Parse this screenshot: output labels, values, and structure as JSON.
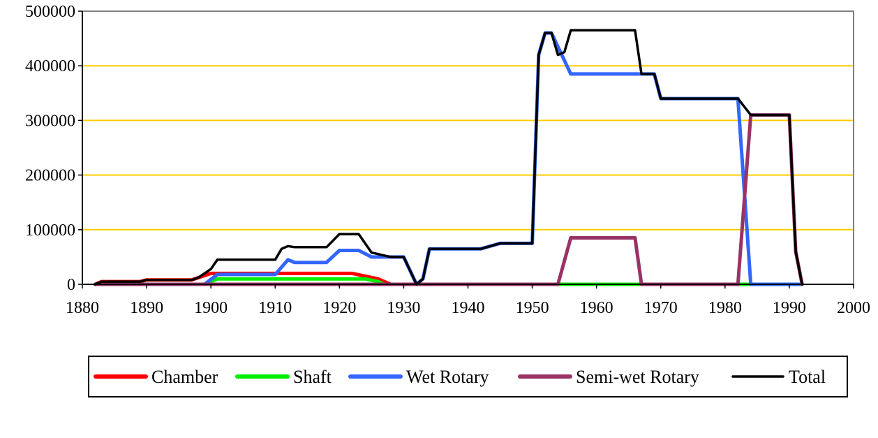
{
  "chart_data": {
    "type": "line",
    "title": "",
    "xlabel": "",
    "ylabel": "",
    "xlim": [
      1880,
      2000
    ],
    "ylim": [
      0,
      500000
    ],
    "x_ticks": [
      "1880",
      "1890",
      "1900",
      "1910",
      "1920",
      "1930",
      "1940",
      "1950",
      "1960",
      "1970",
      "1980",
      "1990",
      "2000"
    ],
    "y_ticks": [
      "0",
      "100000",
      "200000",
      "300000",
      "400000",
      "500000"
    ],
    "grid": "horizontal",
    "grid_color": "#ffcc00",
    "legend_position": "bottom",
    "series": [
      {
        "name": "Chamber",
        "color": "#ff0000",
        "points": [
          [
            1882,
            0
          ],
          [
            1883,
            5000
          ],
          [
            1889,
            5000
          ],
          [
            1890,
            8000
          ],
          [
            1897,
            8000
          ],
          [
            1898,
            12000
          ],
          [
            1900,
            20000
          ],
          [
            1922,
            20000
          ],
          [
            1924,
            15000
          ],
          [
            1926,
            10000
          ],
          [
            1928,
            0
          ],
          [
            1992,
            0
          ]
        ]
      },
      {
        "name": "Shaft",
        "color": "#00ee00",
        "points": [
          [
            1882,
            0
          ],
          [
            1899,
            0
          ],
          [
            1901,
            10000
          ],
          [
            1924,
            10000
          ],
          [
            1926,
            5000
          ],
          [
            1927,
            0
          ],
          [
            1955,
            0
          ],
          [
            1982,
            0
          ],
          [
            1983,
            0
          ],
          [
            1992,
            0
          ]
        ]
      },
      {
        "name": "Wet Rotary",
        "color": "#3366ff",
        "points": [
          [
            1882,
            0
          ],
          [
            1899,
            0
          ],
          [
            1901,
            18000
          ],
          [
            1910,
            18000
          ],
          [
            1912,
            45000
          ],
          [
            1913,
            40000
          ],
          [
            1918,
            40000
          ],
          [
            1920,
            62000
          ],
          [
            1923,
            62000
          ],
          [
            1925,
            50000
          ],
          [
            1928,
            50000
          ],
          [
            1930,
            50000
          ],
          [
            1932,
            0
          ],
          [
            1933,
            10000
          ],
          [
            1934,
            65000
          ],
          [
            1942,
            65000
          ],
          [
            1945,
            75000
          ],
          [
            1950,
            75000
          ],
          [
            1951,
            420000
          ],
          [
            1952,
            460000
          ],
          [
            1953,
            460000
          ],
          [
            1956,
            385000
          ],
          [
            1966,
            385000
          ],
          [
            1967,
            385000
          ],
          [
            1969,
            385000
          ],
          [
            1970,
            340000
          ],
          [
            1982,
            340000
          ],
          [
            1984,
            0
          ],
          [
            1990,
            0
          ],
          [
            1992,
            0
          ]
        ]
      },
      {
        "name": "Semi-wet Rotary",
        "color": "#993366",
        "points": [
          [
            1882,
            0
          ],
          [
            1954,
            0
          ],
          [
            1956,
            85000
          ],
          [
            1966,
            85000
          ],
          [
            1967,
            0
          ],
          [
            1982,
            0
          ],
          [
            1984,
            310000
          ],
          [
            1990,
            310000
          ],
          [
            1991,
            60000
          ],
          [
            1992,
            0
          ]
        ]
      },
      {
        "name": "Total",
        "color": "#000000",
        "points": [
          [
            1882,
            0
          ],
          [
            1883,
            5000
          ],
          [
            1889,
            5000
          ],
          [
            1890,
            8000
          ],
          [
            1897,
            8000
          ],
          [
            1898,
            12000
          ],
          [
            1899,
            20000
          ],
          [
            1900,
            28000
          ],
          [
            1901,
            45000
          ],
          [
            1910,
            45000
          ],
          [
            1911,
            65000
          ],
          [
            1912,
            70000
          ],
          [
            1913,
            68000
          ],
          [
            1918,
            68000
          ],
          [
            1920,
            92000
          ],
          [
            1923,
            92000
          ],
          [
            1925,
            58000
          ],
          [
            1928,
            50000
          ],
          [
            1930,
            50000
          ],
          [
            1932,
            0
          ],
          [
            1933,
            10000
          ],
          [
            1934,
            65000
          ],
          [
            1942,
            65000
          ],
          [
            1945,
            75000
          ],
          [
            1950,
            75000
          ],
          [
            1951,
            420000
          ],
          [
            1952,
            460000
          ],
          [
            1953,
            460000
          ],
          [
            1954,
            420000
          ],
          [
            1955,
            425000
          ],
          [
            1956,
            465000
          ],
          [
            1966,
            465000
          ],
          [
            1967,
            385000
          ],
          [
            1969,
            385000
          ],
          [
            1970,
            340000
          ],
          [
            1982,
            340000
          ],
          [
            1984,
            310000
          ],
          [
            1990,
            310000
          ],
          [
            1991,
            60000
          ],
          [
            1992,
            0
          ]
        ]
      }
    ]
  }
}
